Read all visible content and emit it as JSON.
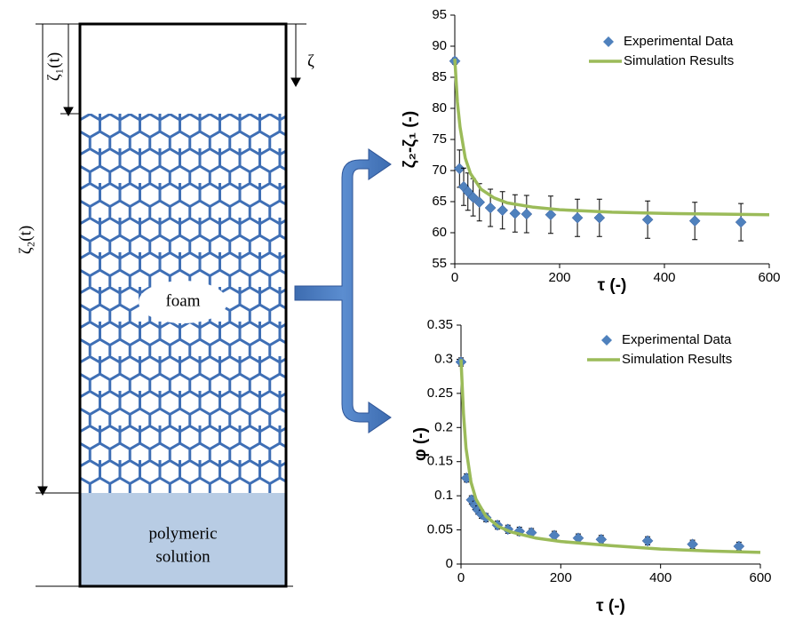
{
  "diagram": {
    "zeta1_label": "ζ₁(t)",
    "zeta2_label": "ζ₂(t)",
    "zeta_label": "ζ",
    "foam_label": "foam",
    "solution_lines": [
      "polymeric",
      "solution"
    ]
  },
  "chart_data": [
    {
      "type": "scatter",
      "x_label": "τ (-)",
      "y_label": "ζ₂-ζ₁ (-)",
      "xlim": [
        0,
        600
      ],
      "xticks": [
        0,
        200,
        400,
        600
      ],
      "ylim": [
        55,
        95
      ],
      "yticks": [
        55,
        60,
        65,
        70,
        75,
        80,
        85,
        90,
        95
      ],
      "series": [
        {
          "name": "Experimental Data",
          "color": "#4f81bd",
          "style": "markers",
          "x": [
            0,
            9,
            17,
            25,
            35,
            47,
            68,
            91,
            115,
            137,
            183,
            234,
            276,
            368,
            458,
            546
          ],
          "values": [
            87.6,
            70.3,
            67.4,
            66.6,
            65.7,
            64.9,
            64,
            63.6,
            63.1,
            63,
            62.9,
            62.4,
            62.4,
            62.1,
            61.9,
            61.7
          ],
          "errors": [
            0.5,
            3,
            3,
            3,
            3,
            3,
            3,
            3,
            3,
            3,
            3,
            3,
            3,
            3,
            3,
            3
          ]
        },
        {
          "name": "Simulation Results",
          "color": "#9bbb59",
          "style": "line",
          "x": [
            0,
            5,
            10,
            20,
            30,
            50,
            75,
            100,
            150,
            200,
            300,
            400,
            500,
            600
          ],
          "values": [
            88,
            81,
            77,
            72,
            69.5,
            67,
            65.6,
            64.8,
            64.1,
            63.7,
            63.3,
            63.1,
            63,
            62.9
          ]
        }
      ]
    },
    {
      "type": "scatter",
      "x_label": "τ (-)",
      "y_label": "φ (-)",
      "xlim": [
        0,
        600
      ],
      "xticks": [
        0,
        200,
        400,
        600
      ],
      "ylim": [
        0,
        0.35
      ],
      "yticks": [
        0,
        0.05,
        0.1,
        0.15,
        0.2,
        0.25,
        0.3,
        0.35
      ],
      "series": [
        {
          "name": "Experimental Data",
          "color": "#4f81bd",
          "style": "markers",
          "x": [
            0,
            11,
            21,
            28,
            34,
            41,
            50,
            73,
            94,
            117,
            141,
            187,
            235,
            281,
            374,
            464,
            557
          ],
          "values": [
            0.296,
            0.126,
            0.094,
            0.086,
            0.079,
            0.073,
            0.068,
            0.057,
            0.051,
            0.048,
            0.046,
            0.042,
            0.038,
            0.036,
            0.034,
            0.029,
            0.026
          ],
          "errors": [
            0.006,
            0.006,
            0.006,
            0.006,
            0.006,
            0.006,
            0.006,
            0.006,
            0.006,
            0.006,
            0.006,
            0.006,
            0.006,
            0.006,
            0.006,
            0.006,
            0.006
          ]
        },
        {
          "name": "Simulation Results",
          "color": "#9bbb59",
          "style": "line",
          "x": [
            0,
            5,
            10,
            20,
            30,
            50,
            75,
            100,
            150,
            200,
            300,
            400,
            500,
            600
          ],
          "values": [
            0.3,
            0.22,
            0.17,
            0.12,
            0.095,
            0.07,
            0.055,
            0.047,
            0.038,
            0.033,
            0.027,
            0.022,
            0.019,
            0.017
          ]
        }
      ]
    }
  ]
}
